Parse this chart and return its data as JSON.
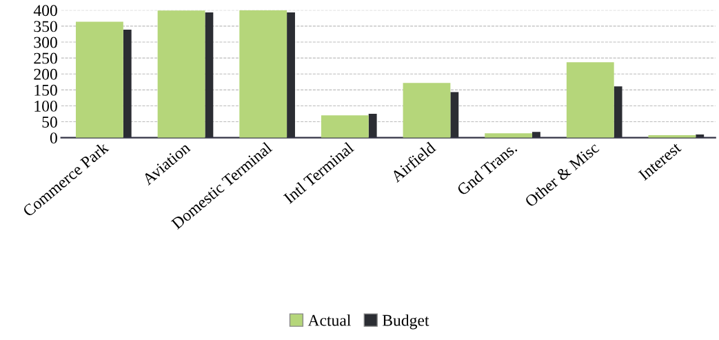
{
  "chart_data": {
    "type": "bar",
    "categories": [
      "Commerce Park",
      "Aviation",
      "Domestic Terminal",
      "Intl Terminal",
      "Airfield",
      "Gnd Trans.",
      "Other & Misc",
      "Interest"
    ],
    "series": [
      {
        "name": "Actual",
        "color": "#b5d67a",
        "values": [
          364,
          399,
          400,
          70,
          172,
          14,
          237,
          8
        ]
      },
      {
        "name": "Budget",
        "color": "#2b2d33",
        "values": [
          339,
          393,
          393,
          75,
          143,
          18,
          161,
          10
        ]
      }
    ],
    "ylim": [
      0,
      400
    ],
    "yticks": [
      0,
      50,
      100,
      150,
      200,
      250,
      300,
      350,
      400
    ],
    "grid": "y",
    "legend": "bottom"
  }
}
